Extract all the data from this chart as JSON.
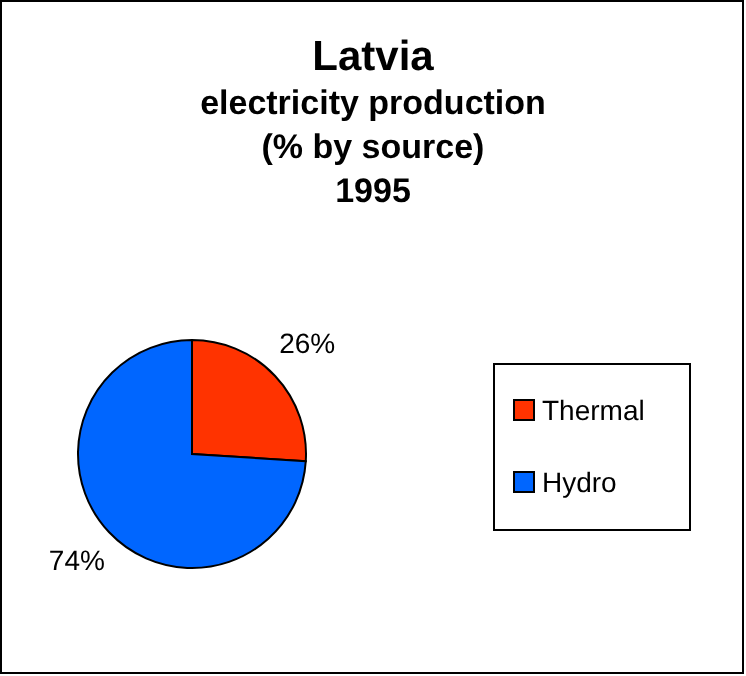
{
  "chart_data": {
    "type": "pie",
    "title": "Latvia\nelectricity production\n(% by source)\n1995",
    "categories": [
      "Thermal",
      "Hydro"
    ],
    "values": [
      26,
      74
    ],
    "colors": [
      "#ff3300",
      "#0066ff"
    ],
    "value_labels": [
      "26%",
      "74%"
    ],
    "legend": "right"
  }
}
